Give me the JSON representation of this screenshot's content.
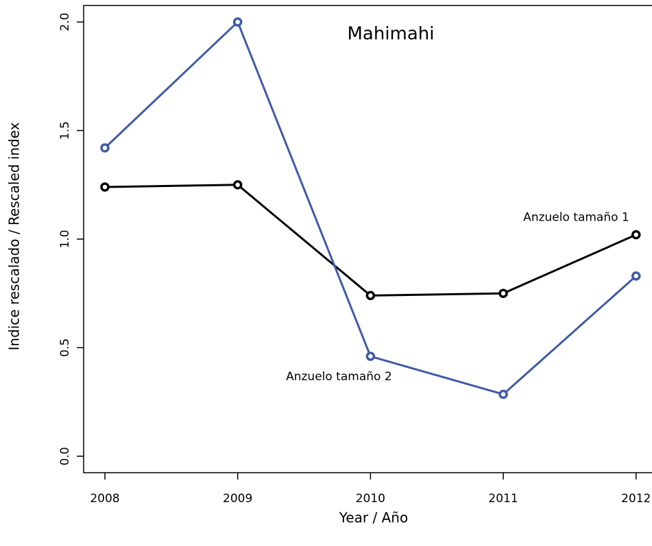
{
  "chart_data": {
    "type": "line",
    "title": "Mahimahi",
    "xlabel": "Year / Año",
    "ylabel": "Indice rescalado / Rescaled index",
    "x": [
      2008,
      2009,
      2010,
      2011,
      2012
    ],
    "series": [
      {
        "name": "Anzuelo tamaño 1",
        "color": "#000000",
        "values": [
          1.24,
          1.25,
          0.74,
          0.75,
          1.02
        ]
      },
      {
        "name": "Anzuelo tamaño 2",
        "color": "#3f5aa6",
        "values": [
          1.42,
          2.0,
          0.46,
          0.285,
          0.83
        ]
      }
    ],
    "xlim": [
      2007.84,
      2012.12
    ],
    "ylim": [
      -0.076,
      2.076
    ],
    "xticks": [
      2008,
      2009,
      2010,
      2011,
      2012
    ],
    "yticks": [
      {
        "value": 0,
        "label": "0.0"
      },
      0.5,
      {
        "value": 1,
        "label": "1.0"
      },
      1.5,
      {
        "value": 2,
        "label": "2.0"
      }
    ]
  }
}
